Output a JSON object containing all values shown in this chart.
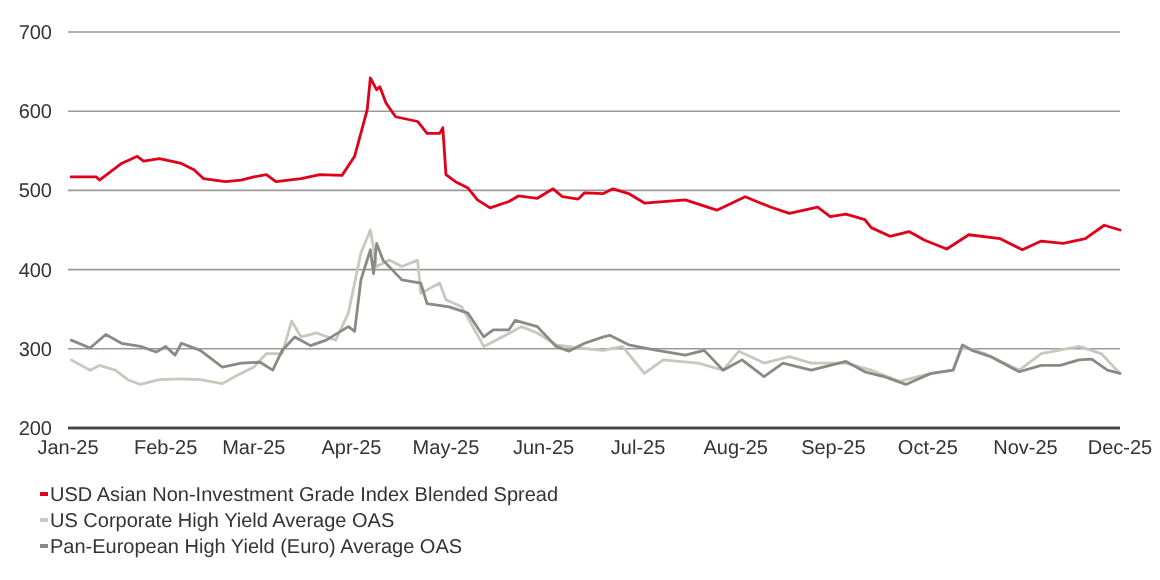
{
  "chart_data": {
    "type": "line",
    "legend": "bottom",
    "grid": "y",
    "line_style": "solid",
    "marker": "none",
    "xlim": [
      "2025-01-01",
      "2025-12-01"
    ],
    "xticks": [
      {
        "value": "2025-01-01",
        "label": "Jan-25"
      },
      {
        "value": "2025-02-01",
        "label": "Feb-25"
      },
      {
        "value": "2025-03-01",
        "label": "Mar-25"
      },
      {
        "value": "2025-04-01",
        "label": "Apr-25"
      },
      {
        "value": "2025-05-01",
        "label": "May-25"
      },
      {
        "value": "2025-06-01",
        "label": "Jun-25"
      },
      {
        "value": "2025-07-01",
        "label": "Jul-25"
      },
      {
        "value": "2025-08-01",
        "label": "Aug-25"
      },
      {
        "value": "2025-09-01",
        "label": "Sep-25"
      },
      {
        "value": "2025-10-01",
        "label": "Oct-25"
      },
      {
        "value": "2025-11-01",
        "label": "Nov-25"
      },
      {
        "value": "2025-12-01",
        "label": "Dec-25"
      }
    ],
    "ylim": [
      200,
      700
    ],
    "yticks": [
      200,
      300,
      400,
      500,
      600,
      700
    ],
    "series": [
      {
        "name": "USD Asian Non-Investment Grade Index Blended Spread",
        "color": "#e0001a",
        "x": [
          "2025-01-02",
          "2025-01-10",
          "2025-01-11",
          "2025-01-18",
          "2025-01-23",
          "2025-01-25",
          "2025-01-30",
          "2025-02-06",
          "2025-02-10",
          "2025-02-13",
          "2025-02-20",
          "2025-02-25",
          "2025-03-01",
          "2025-03-05",
          "2025-03-08",
          "2025-03-16",
          "2025-03-22",
          "2025-03-29",
          "2025-04-02",
          "2025-04-06",
          "2025-04-07",
          "2025-04-09",
          "2025-04-10",
          "2025-04-12",
          "2025-04-15",
          "2025-04-22",
          "2025-04-25",
          "2025-04-29",
          "2025-04-30",
          "2025-05-01",
          "2025-05-04",
          "2025-05-08",
          "2025-05-11",
          "2025-05-15",
          "2025-05-21",
          "2025-05-24",
          "2025-05-30",
          "2025-06-04",
          "2025-06-07",
          "2025-06-12",
          "2025-06-14",
          "2025-06-20",
          "2025-06-23",
          "2025-06-28",
          "2025-07-03",
          "2025-07-16",
          "2025-07-26",
          "2025-08-04",
          "2025-08-12",
          "2025-08-18",
          "2025-08-27",
          "2025-08-31",
          "2025-09-05",
          "2025-09-11",
          "2025-09-13",
          "2025-09-19",
          "2025-09-25",
          "2025-09-30",
          "2025-10-07",
          "2025-10-14",
          "2025-10-24",
          "2025-10-31",
          "2025-11-06",
          "2025-11-13",
          "2025-11-20",
          "2025-11-26",
          "2025-12-01"
        ],
        "values": [
          517,
          517,
          513,
          534,
          543,
          537,
          540,
          534,
          526,
          515,
          511,
          513,
          517,
          520,
          511,
          515,
          520,
          519,
          543,
          602,
          642,
          627,
          631,
          610,
          593,
          587,
          572,
          572,
          579,
          520,
          511,
          503,
          488,
          478,
          486,
          493,
          490,
          502,
          492,
          489,
          497,
          496,
          502,
          496,
          484,
          488,
          475,
          492,
          479,
          471,
          479,
          467,
          470,
          463,
          453,
          442,
          448,
          437,
          426,
          444,
          439,
          425,
          436,
          433,
          439,
          456,
          450
        ]
      },
      {
        "name": "US Corporate High Yield Average OAS",
        "color": "#c8c8bf",
        "x": [
          "2025-01-02",
          "2025-01-08",
          "2025-01-11",
          "2025-01-16",
          "2025-01-20",
          "2025-01-24",
          "2025-01-30",
          "2025-02-06",
          "2025-02-12",
          "2025-02-19",
          "2025-02-23",
          "2025-03-01",
          "2025-03-05",
          "2025-03-10",
          "2025-03-13",
          "2025-03-16",
          "2025-03-21",
          "2025-03-27",
          "2025-03-31",
          "2025-04-04",
          "2025-04-07",
          "2025-04-09",
          "2025-04-13",
          "2025-04-17",
          "2025-04-22",
          "2025-04-23",
          "2025-04-29",
          "2025-05-01",
          "2025-05-06",
          "2025-05-13",
          "2025-05-17",
          "2025-05-25",
          "2025-05-30",
          "2025-06-05",
          "2025-06-12",
          "2025-06-20",
          "2025-06-26",
          "2025-07-03",
          "2025-07-09",
          "2025-07-20",
          "2025-07-28",
          "2025-08-02",
          "2025-08-10",
          "2025-08-18",
          "2025-08-25",
          "2025-09-05",
          "2025-09-13",
          "2025-09-22",
          "2025-09-30",
          "2025-10-09",
          "2025-10-12",
          "2025-10-19",
          "2025-10-30",
          "2025-11-06",
          "2025-11-18",
          "2025-11-25",
          "2025-12-01"
        ],
        "values": [
          286,
          273,
          279,
          273,
          261,
          255,
          261,
          262,
          261,
          256,
          265,
          277,
          294,
          294,
          335,
          315,
          320,
          311,
          345,
          421,
          450,
          404,
          412,
          404,
          412,
          370,
          383,
          362,
          353,
          303,
          311,
          328,
          320,
          305,
          301,
          298,
          303,
          269,
          286,
          282,
          273,
          297,
          282,
          290,
          282,
          282,
          273,
          259,
          267,
          273,
          303,
          294,
          273,
          294,
          303,
          294,
          269
        ]
      },
      {
        "name": "Pan-European High Yield (Euro) Average OAS",
        "color": "#8a8a85",
        "x": [
          "2025-01-02",
          "2025-01-08",
          "2025-01-13",
          "2025-01-18",
          "2025-01-24",
          "2025-01-29",
          "2025-02-01",
          "2025-02-04",
          "2025-02-06",
          "2025-02-12",
          "2025-02-19",
          "2025-02-25",
          "2025-03-03",
          "2025-03-07",
          "2025-03-10",
          "2025-03-14",
          "2025-03-19",
          "2025-03-24",
          "2025-03-31",
          "2025-04-02",
          "2025-04-04",
          "2025-04-07",
          "2025-04-08",
          "2025-04-09",
          "2025-04-11",
          "2025-04-17",
          "2025-04-23",
          "2025-04-25",
          "2025-05-02",
          "2025-05-08",
          "2025-05-13",
          "2025-05-16",
          "2025-05-21",
          "2025-05-23",
          "2025-05-30",
          "2025-06-05",
          "2025-06-09",
          "2025-06-14",
          "2025-06-20",
          "2025-06-22",
          "2025-06-28",
          "2025-07-07",
          "2025-07-16",
          "2025-07-22",
          "2025-07-28",
          "2025-08-03",
          "2025-08-10",
          "2025-08-16",
          "2025-08-25",
          "2025-09-05",
          "2025-09-11",
          "2025-09-17",
          "2025-09-24",
          "2025-10-02",
          "2025-10-09",
          "2025-10-12",
          "2025-10-15",
          "2025-10-21",
          "2025-10-30",
          "2025-11-06",
          "2025-11-12",
          "2025-11-18",
          "2025-11-22",
          "2025-11-27",
          "2025-12-01"
        ],
        "values": [
          311,
          301,
          318,
          307,
          303,
          296,
          303,
          292,
          307,
          298,
          277,
          282,
          283,
          273,
          298,
          315,
          304,
          311,
          328,
          322,
          387,
          425,
          395,
          433,
          412,
          387,
          383,
          357,
          353,
          345,
          315,
          324,
          324,
          336,
          328,
          303,
          297,
          307,
          315,
          317,
          305,
          298,
          292,
          298,
          273,
          286,
          265,
          282,
          273,
          284,
          271,
          265,
          255,
          269,
          273,
          305,
          298,
          290,
          271,
          279,
          279,
          286,
          287,
          273,
          269
        ]
      }
    ]
  }
}
